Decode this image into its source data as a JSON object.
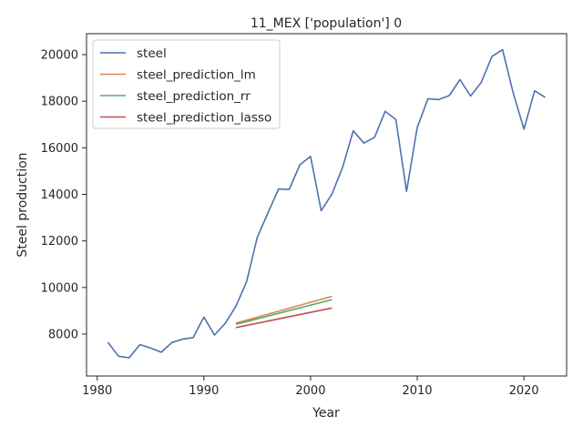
{
  "chart_data": {
    "type": "line",
    "title": "11_MEX ['population'] 0",
    "xlabel": "Year",
    "ylabel": "Steel production",
    "xlim": [
      1979,
      2024
    ],
    "ylim": [
      6200,
      20900
    ],
    "xticks": [
      1980,
      1990,
      2000,
      2010,
      2020
    ],
    "yticks": [
      8000,
      10000,
      12000,
      14000,
      16000,
      18000,
      20000
    ],
    "grid": false,
    "legend_position": "top-left",
    "series": [
      {
        "name": "steel",
        "color": "#4c72b0",
        "x": [
          1981,
          1982,
          1983,
          1984,
          1985,
          1986,
          1987,
          1988,
          1989,
          1990,
          1991,
          1992,
          1993,
          1994,
          1995,
          1996,
          1997,
          1998,
          1999,
          2000,
          2001,
          2002,
          2003,
          2004,
          2005,
          2006,
          2007,
          2008,
          2009,
          2010,
          2011,
          2012,
          2013,
          2014,
          2015,
          2016,
          2017,
          2018,
          2019,
          2020,
          2021,
          2022
        ],
        "y": [
          7650,
          7050,
          6980,
          7550,
          7400,
          7220,
          7640,
          7780,
          7850,
          8730,
          7960,
          8460,
          9200,
          10250,
          12150,
          13200,
          14230,
          14210,
          15270,
          15630,
          13300,
          14010,
          15160,
          16730,
          16200,
          16450,
          17570,
          17210,
          14130,
          16870,
          18110,
          18070,
          18240,
          18930,
          18220,
          18810,
          19920,
          20210,
          18350,
          16800,
          18450,
          18160
        ]
      },
      {
        "name": "steel_prediction_lm",
        "color": "#dd8452",
        "x": [
          1993,
          2002
        ],
        "y": [
          8470,
          9620
        ]
      },
      {
        "name": "steel_prediction_rr",
        "color": "#55a868",
        "x": [
          1993,
          2002
        ],
        "y": [
          8420,
          9480
        ]
      },
      {
        "name": "steel_prediction_lasso",
        "color": "#c44e52",
        "x": [
          1993,
          2002
        ],
        "y": [
          8280,
          9120
        ]
      }
    ]
  }
}
